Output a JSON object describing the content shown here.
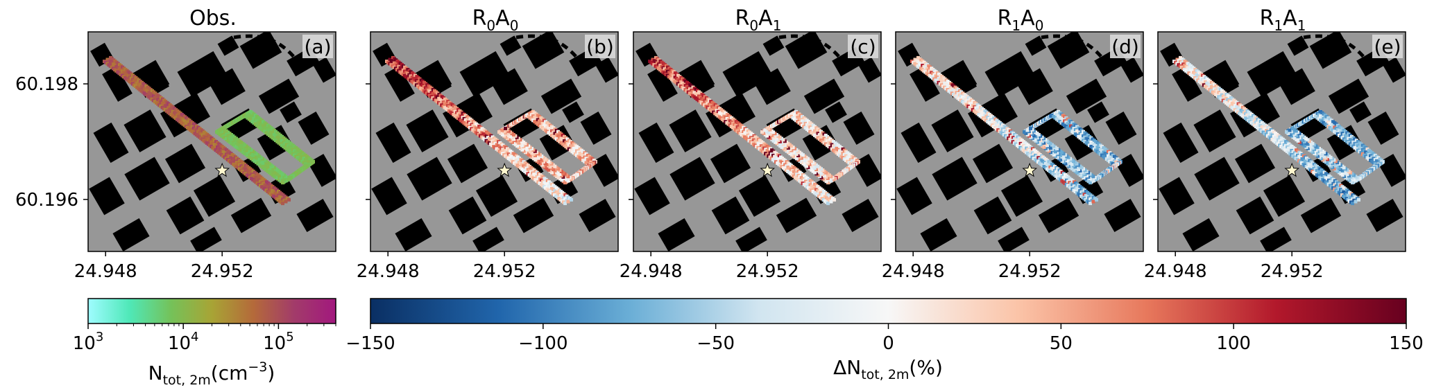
{
  "chart_data": [
    {
      "type": "heatmap",
      "panel": "a",
      "title_text": "Obs.",
      "panel_label": "(a)",
      "x_ticks": [
        24.948,
        24.952
      ],
      "y_ticks": [
        60.198,
        60.196
      ],
      "xlim": [
        24.9474,
        24.9559
      ],
      "ylim": [
        60.1951,
        60.1989
      ],
      "star": {
        "x": 24.952,
        "y": 60.1965
      }
    },
    {
      "type": "heatmap",
      "panel": "b",
      "title": {
        "main": "R",
        "sub1": "0",
        "mid": "A",
        "sub2": "0"
      },
      "panel_label": "(b)",
      "x_ticks": [
        24.948,
        24.952
      ],
      "xlim": [
        24.9474,
        24.9559
      ],
      "ylim": [
        60.1951,
        60.1989
      ],
      "star": {
        "x": 24.952,
        "y": 60.1965
      }
    },
    {
      "type": "heatmap",
      "panel": "c",
      "title": {
        "main": "R",
        "sub1": "0",
        "mid": "A",
        "sub2": "1"
      },
      "panel_label": "(c)",
      "x_ticks": [
        24.948,
        24.952
      ],
      "xlim": [
        24.9474,
        24.9559
      ],
      "ylim": [
        60.1951,
        60.1989
      ],
      "star": {
        "x": 24.952,
        "y": 60.1965
      }
    },
    {
      "type": "heatmap",
      "panel": "d",
      "title": {
        "main": "R",
        "sub1": "1",
        "mid": "A",
        "sub2": "0"
      },
      "panel_label": "(d)",
      "x_ticks": [
        24.948,
        24.952
      ],
      "xlim": [
        24.9474,
        24.9559
      ],
      "ylim": [
        60.1951,
        60.1989
      ],
      "star": {
        "x": 24.952,
        "y": 60.1965
      }
    },
    {
      "type": "heatmap",
      "panel": "e",
      "title": {
        "main": "R",
        "sub1": "1",
        "mid": "A",
        "sub2": "1"
      },
      "panel_label": "(e)",
      "x_ticks": [
        24.948,
        24.952
      ],
      "xlim": [
        24.9474,
        24.9559
      ],
      "ylim": [
        60.1951,
        60.1989
      ],
      "star": {
        "x": 24.952,
        "y": 60.1965
      }
    }
  ],
  "colorbars": {
    "obs": {
      "scale": "log",
      "ticks": [
        {
          "value": 1000,
          "base": "10",
          "exp": "3"
        },
        {
          "value": 10000,
          "base": "10",
          "exp": "4"
        },
        {
          "value": 100000,
          "base": "10",
          "exp": "5"
        }
      ],
      "range": [
        1000,
        400000
      ],
      "label": {
        "main": "N",
        "sub": "tot, 2m",
        "unit_open": "(cm",
        "unit_sup": "−3",
        "unit_close": ")"
      },
      "colors": [
        "#9ffcff",
        "#4fe8b8",
        "#74c25a",
        "#a8a435",
        "#b46a3a",
        "#a23b6a",
        "#a2187e"
      ]
    },
    "delta": {
      "scale": "linear",
      "range": [
        -150,
        150
      ],
      "ticks": [
        "−150",
        "−100",
        "−50",
        "0",
        "50",
        "100",
        "150"
      ],
      "label": {
        "prefix": "ΔN",
        "sub": "tot, 2m",
        "unit": "(%)"
      },
      "colors": [
        "#0a2f63",
        "#2166ac",
        "#6aaed6",
        "#d1e5f0",
        "#f7f7f7",
        "#fbc4a8",
        "#e7785c",
        "#b2182b",
        "#67001f"
      ]
    }
  },
  "colors": {
    "map_background": "#979797",
    "buildings": "#000000",
    "star_fill": "#fff8d0"
  }
}
